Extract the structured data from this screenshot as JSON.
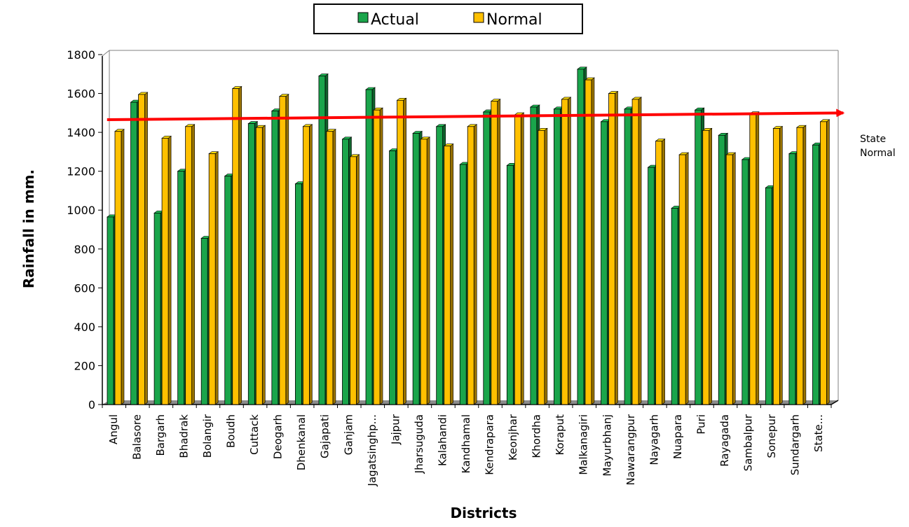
{
  "chart_data": {
    "type": "bar",
    "title": "",
    "xlabel": "Districts",
    "ylabel": "Rainfall in mm.",
    "ylim": [
      0,
      1800
    ],
    "yticks": [
      0,
      200,
      400,
      600,
      800,
      1000,
      1200,
      1400,
      1600,
      1800
    ],
    "grid": false,
    "legend_position": "top-center",
    "categories": [
      "Angul",
      "Balasore",
      "Bargarh",
      "Bhadrak",
      "Bolangir",
      "Boudh",
      "Cuttack",
      "Deogarh",
      "Dhenkanal",
      "Gajapati",
      "Ganjam",
      "Jagatsinghp...",
      "Jajpur",
      "Jharsuguda",
      "Kalahandi",
      "Kandhamal",
      "Kendrapara",
      "Keonjhar",
      "Khordha",
      "Koraput",
      "Malkanagiri",
      "Mayurbhanj",
      "Nawarangpur",
      "Nayagarh",
      "Nuapara",
      "Puri",
      "Rayagada",
      "Sambalpur",
      "Sonepur",
      "Sundargarh",
      "State..."
    ],
    "series": [
      {
        "name": "Actual",
        "color": "#1aa54b",
        "values": [
          965,
          1555,
          985,
          1200,
          855,
          1175,
          1445,
          1510,
          1135,
          1690,
          1365,
          1620,
          1305,
          1395,
          1430,
          1235,
          1505,
          1230,
          1530,
          1520,
          1725,
          1455,
          1520,
          1220,
          1010,
          1515,
          1385,
          1260,
          1115,
          1290,
          1335
        ]
      },
      {
        "name": "Normal",
        "color": "#ffc000",
        "values": [
          1405,
          1595,
          1370,
          1430,
          1290,
          1625,
          1425,
          1585,
          1430,
          1405,
          1275,
          1515,
          1565,
          1365,
          1330,
          1430,
          1560,
          1490,
          1410,
          1570,
          1670,
          1600,
          1570,
          1355,
          1285,
          1410,
          1285,
          1495,
          1420,
          1425,
          1455
        ]
      }
    ],
    "annotations": [
      {
        "type": "arrow",
        "color": "#ff0000",
        "from": {
          "category": "Angul",
          "value": 1465
        },
        "to": {
          "category": "State...",
          "value": 1500
        }
      }
    ],
    "annotation_label": "State\nNormal"
  }
}
